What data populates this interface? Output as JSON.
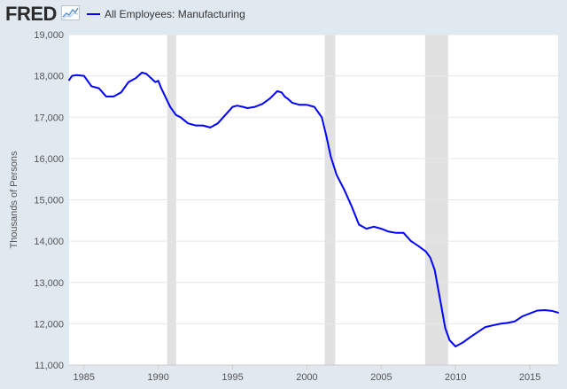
{
  "header": {
    "logo_text": "FRED",
    "legend_label": "All Employees: Manufacturing"
  },
  "colors": {
    "series": "#0000ff",
    "recession": "#e1e1e1",
    "background": "#e1e9f0",
    "plot_background": "#ffffff",
    "gridline": "#e6e6e6"
  },
  "chart_data": {
    "type": "line",
    "title": "",
    "xlabel": "",
    "ylabel": "Thousands of Persons",
    "xlim": [
      1984.0,
      2016.9
    ],
    "ylim": [
      11000,
      19000
    ],
    "yticks": [
      {
        "value": 11000,
        "label": "11,000"
      },
      {
        "value": 12000,
        "label": "12,000"
      },
      {
        "value": 13000,
        "label": "13,000"
      },
      {
        "value": 14000,
        "label": "14,000"
      },
      {
        "value": 15000,
        "label": "15,000"
      },
      {
        "value": 16000,
        "label": "16,000"
      },
      {
        "value": 17000,
        "label": "17,000"
      },
      {
        "value": 18000,
        "label": "18,000"
      },
      {
        "value": 19000,
        "label": "19,000"
      }
    ],
    "xticks": [
      {
        "value": 1985,
        "label": "1985"
      },
      {
        "value": 1990,
        "label": "1990"
      },
      {
        "value": 1995,
        "label": "1995"
      },
      {
        "value": 2000,
        "label": "2000"
      },
      {
        "value": 2005,
        "label": "2005"
      },
      {
        "value": 2010,
        "label": "2010"
      },
      {
        "value": 2015,
        "label": "2015"
      }
    ],
    "recessions": [
      {
        "start": 1990.6,
        "end": 1991.2
      },
      {
        "start": 2001.2,
        "end": 2001.9
      },
      {
        "start": 2007.95,
        "end": 2009.5
      }
    ],
    "series": [
      {
        "name": "All Employees: Manufacturing",
        "x": [
          1984.0,
          1984.2,
          1984.5,
          1985.0,
          1985.5,
          1986.0,
          1986.5,
          1987.0,
          1987.5,
          1988.0,
          1988.5,
          1988.9,
          1989.2,
          1989.5,
          1989.8,
          1990.0,
          1990.2,
          1990.4,
          1990.6,
          1990.8,
          1991.0,
          1991.2,
          1991.5,
          1992.0,
          1992.5,
          1993.0,
          1993.5,
          1994.0,
          1994.5,
          1995.0,
          1995.3,
          1995.7,
          1996.0,
          1996.5,
          1997.0,
          1997.5,
          1998.0,
          1998.3,
          1998.5,
          1998.7,
          1999.0,
          1999.5,
          2000.0,
          2000.5,
          2001.0,
          2001.3,
          2001.6,
          2002.0,
          2002.5,
          2003.0,
          2003.5,
          2004.0,
          2004.5,
          2005.0,
          2005.5,
          2006.0,
          2006.5,
          2007.0,
          2007.5,
          2008.0,
          2008.3,
          2008.6,
          2009.0,
          2009.3,
          2009.6,
          2010.0,
          2010.5,
          2011.0,
          2011.5,
          2012.0,
          2012.5,
          2013.0,
          2013.5,
          2014.0,
          2014.5,
          2015.0,
          2015.5,
          2016.0,
          2016.5,
          2016.9
        ],
        "values": [
          17900,
          18000,
          18020,
          18000,
          17750,
          17700,
          17500,
          17500,
          17600,
          17850,
          17950,
          18080,
          18050,
          17950,
          17850,
          17880,
          17700,
          17550,
          17400,
          17250,
          17150,
          17050,
          17000,
          16850,
          16800,
          16800,
          16750,
          16850,
          17050,
          17250,
          17280,
          17250,
          17220,
          17250,
          17320,
          17450,
          17630,
          17600,
          17500,
          17450,
          17350,
          17300,
          17300,
          17250,
          17000,
          16550,
          16050,
          15600,
          15250,
          14850,
          14400,
          14300,
          14350,
          14300,
          14230,
          14200,
          14200,
          14000,
          13880,
          13750,
          13600,
          13300,
          12500,
          11900,
          11600,
          11450,
          11550,
          11680,
          11800,
          11920,
          11960,
          12000,
          12020,
          12060,
          12180,
          12250,
          12320,
          12330,
          12310,
          12270
        ]
      }
    ]
  }
}
